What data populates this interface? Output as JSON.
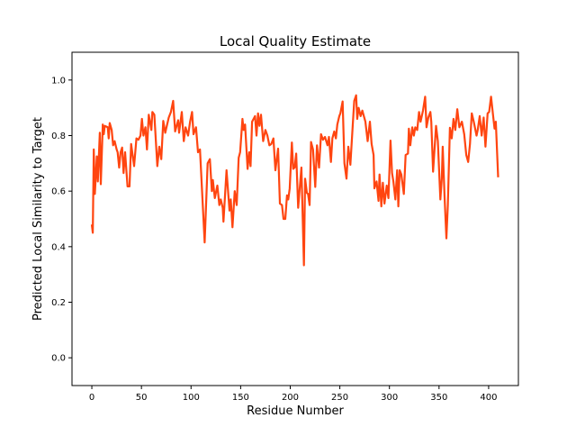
{
  "chart_data": {
    "type": "line",
    "title": "Local Quality Estimate",
    "xlabel": "Residue Number",
    "ylabel": "Predicted Local Similarity to Target",
    "xlim": [
      -20,
      430
    ],
    "ylim": [
      -0.1,
      1.1
    ],
    "xticks": [
      0,
      50,
      100,
      150,
      200,
      250,
      300,
      350,
      400
    ],
    "xtick_labels": [
      "0",
      "50",
      "100",
      "150",
      "200",
      "250",
      "300",
      "350",
      "400"
    ],
    "yticks": [
      0.0,
      0.2,
      0.4,
      0.6,
      0.8,
      1.0
    ],
    "ytick_labels": [
      "0.0",
      "0.2",
      "0.4",
      "0.6",
      "0.8",
      "1.0"
    ],
    "grid": false,
    "series": [
      {
        "name": "local quality",
        "color": "#ff4510",
        "points": [
          [
            0,
            0.48
          ],
          [
            1,
            0.45
          ],
          [
            2,
            0.75
          ],
          [
            3,
            0.59
          ],
          [
            5,
            0.725
          ],
          [
            6,
            0.635
          ],
          [
            8,
            0.81
          ],
          [
            9,
            0.625
          ],
          [
            11,
            0.84
          ],
          [
            12,
            0.805
          ],
          [
            13,
            0.835
          ],
          [
            16,
            0.83
          ],
          [
            17,
            0.79
          ],
          [
            18,
            0.845
          ],
          [
            20,
            0.82
          ],
          [
            21.5,
            0.765
          ],
          [
            23,
            0.78
          ],
          [
            25,
            0.75
          ],
          [
            26,
            0.74
          ],
          [
            27.5,
            0.685
          ],
          [
            29,
            0.74
          ],
          [
            30.5,
            0.757
          ],
          [
            32,
            0.665
          ],
          [
            33.5,
            0.74
          ],
          [
            36,
            0.617
          ],
          [
            38,
            0.617
          ],
          [
            39.6,
            0.77
          ],
          [
            42.6,
            0.69
          ],
          [
            45,
            0.79
          ],
          [
            47,
            0.785
          ],
          [
            49,
            0.8
          ],
          [
            50.5,
            0.86
          ],
          [
            52,
            0.8
          ],
          [
            54,
            0.83
          ],
          [
            55.6,
            0.75
          ],
          [
            57.4,
            0.875
          ],
          [
            60,
            0.82
          ],
          [
            61,
            0.885
          ],
          [
            63,
            0.875
          ],
          [
            66,
            0.69
          ],
          [
            68,
            0.76
          ],
          [
            70,
            0.715
          ],
          [
            72,
            0.853
          ],
          [
            74,
            0.81
          ],
          [
            77.5,
            0.865
          ],
          [
            79.7,
            0.885
          ],
          [
            82,
            0.925
          ],
          [
            84,
            0.815
          ],
          [
            87,
            0.855
          ],
          [
            88,
            0.81
          ],
          [
            90.7,
            0.885
          ],
          [
            92.7,
            0.78
          ],
          [
            94.5,
            0.83
          ],
          [
            97,
            0.8
          ],
          [
            99,
            0.85
          ],
          [
            101,
            0.885
          ],
          [
            102.5,
            0.805
          ],
          [
            105,
            0.83
          ],
          [
            107,
            0.74
          ],
          [
            109,
            0.75
          ],
          [
            113.7,
            0.415
          ],
          [
            116.7,
            0.7
          ],
          [
            119,
            0.715
          ],
          [
            121,
            0.6
          ],
          [
            122,
            0.64
          ],
          [
            124,
            0.575
          ],
          [
            126.5,
            0.62
          ],
          [
            128.5,
            0.55
          ],
          [
            130,
            0.57
          ],
          [
            132,
            0.54
          ],
          [
            132.7,
            0.49
          ],
          [
            135.8,
            0.675
          ],
          [
            138.8,
            0.53
          ],
          [
            140,
            0.57
          ],
          [
            141.8,
            0.47
          ],
          [
            144,
            0.6
          ],
          [
            146,
            0.55
          ],
          [
            148,
            0.72
          ],
          [
            149.5,
            0.74
          ],
          [
            151.8,
            0.86
          ],
          [
            153,
            0.82
          ],
          [
            154.5,
            0.84
          ],
          [
            157,
            0.68
          ],
          [
            158.6,
            0.74
          ],
          [
            160,
            0.69
          ],
          [
            161.5,
            0.85
          ],
          [
            164.5,
            0.87
          ],
          [
            166,
            0.8
          ],
          [
            167.5,
            0.88
          ],
          [
            169,
            0.835
          ],
          [
            170.5,
            0.875
          ],
          [
            172.7,
            0.78
          ],
          [
            175,
            0.82
          ],
          [
            177,
            0.8
          ],
          [
            179,
            0.765
          ],
          [
            181,
            0.77
          ],
          [
            183,
            0.79
          ],
          [
            185,
            0.675
          ],
          [
            187.8,
            0.753
          ],
          [
            189.6,
            0.555
          ],
          [
            191.7,
            0.55
          ],
          [
            193.2,
            0.5
          ],
          [
            195,
            0.5
          ],
          [
            196.7,
            0.585
          ],
          [
            198,
            0.57
          ],
          [
            199.5,
            0.61
          ],
          [
            201.6,
            0.775
          ],
          [
            203,
            0.68
          ],
          [
            204.5,
            0.685
          ],
          [
            206,
            0.735
          ],
          [
            208,
            0.54
          ],
          [
            211.3,
            0.685
          ],
          [
            213.8,
            0.333
          ],
          [
            215,
            0.645
          ],
          [
            216.8,
            0.593
          ],
          [
            218,
            0.59
          ],
          [
            219.5,
            0.55
          ],
          [
            221,
            0.777
          ],
          [
            223,
            0.75
          ],
          [
            225.2,
            0.615
          ],
          [
            227,
            0.765
          ],
          [
            229,
            0.685
          ],
          [
            231,
            0.805
          ],
          [
            233,
            0.785
          ],
          [
            235,
            0.795
          ],
          [
            237.6,
            0.765
          ],
          [
            239,
            0.795
          ],
          [
            241,
            0.705
          ],
          [
            242.5,
            0.79
          ],
          [
            244.4,
            0.815
          ],
          [
            246,
            0.79
          ],
          [
            247.5,
            0.84
          ],
          [
            249.5,
            0.87
          ],
          [
            250.5,
            0.88
          ],
          [
            252.8,
            0.923
          ],
          [
            254.6,
            0.7
          ],
          [
            256.7,
            0.645
          ],
          [
            258.5,
            0.76
          ],
          [
            260.6,
            0.695
          ],
          [
            263,
            0.835
          ],
          [
            264.5,
            0.925
          ],
          [
            266.4,
            0.945
          ],
          [
            267.5,
            0.86
          ],
          [
            269,
            0.9
          ],
          [
            271,
            0.87
          ],
          [
            272.7,
            0.89
          ],
          [
            275.8,
            0.85
          ],
          [
            278,
            0.78
          ],
          [
            280.3,
            0.85
          ],
          [
            282,
            0.77
          ],
          [
            284,
            0.73
          ],
          [
            284.8,
            0.61
          ],
          [
            287,
            0.635
          ],
          [
            289,
            0.565
          ],
          [
            290,
            0.66
          ],
          [
            291.8,
            0.545
          ],
          [
            293.4,
            0.63
          ],
          [
            295,
            0.555
          ],
          [
            297.3,
            0.62
          ],
          [
            299,
            0.575
          ],
          [
            301.1,
            0.782
          ],
          [
            302.6,
            0.665
          ],
          [
            304,
            0.635
          ],
          [
            306,
            0.57
          ],
          [
            307.8,
            0.675
          ],
          [
            309,
            0.545
          ],
          [
            310.3,
            0.675
          ],
          [
            312,
            0.66
          ],
          [
            314.5,
            0.59
          ],
          [
            316.3,
            0.73
          ],
          [
            318.7,
            0.735
          ],
          [
            319.6,
            0.825
          ],
          [
            321,
            0.765
          ],
          [
            323,
            0.83
          ],
          [
            324.6,
            0.8
          ],
          [
            326,
            0.83
          ],
          [
            328,
            0.82
          ],
          [
            329.8,
            0.885
          ],
          [
            331.4,
            0.85
          ],
          [
            333.8,
            0.89
          ],
          [
            336,
            0.94
          ],
          [
            337.4,
            0.83
          ],
          [
            339.2,
            0.865
          ],
          [
            341.3,
            0.885
          ],
          [
            342.2,
            0.85
          ],
          [
            344,
            0.67
          ],
          [
            347,
            0.835
          ],
          [
            348.8,
            0.78
          ],
          [
            351.3,
            0.57
          ],
          [
            352.8,
            0.645
          ],
          [
            353.7,
            0.76
          ],
          [
            355.5,
            0.585
          ],
          [
            357.4,
            0.43
          ],
          [
            358.9,
            0.55
          ],
          [
            361,
            0.828
          ],
          [
            362.8,
            0.79
          ],
          [
            364.6,
            0.86
          ],
          [
            366.4,
            0.82
          ],
          [
            368.4,
            0.895
          ],
          [
            370.5,
            0.83
          ],
          [
            373,
            0.85
          ],
          [
            375.4,
            0.805
          ],
          [
            377.5,
            0.73
          ],
          [
            379.4,
            0.705
          ],
          [
            381.2,
            0.77
          ],
          [
            383,
            0.88
          ],
          [
            385,
            0.85
          ],
          [
            387.8,
            0.8
          ],
          [
            389,
            0.82
          ],
          [
            391,
            0.87
          ],
          [
            393,
            0.8
          ],
          [
            395,
            0.865
          ],
          [
            396.8,
            0.76
          ],
          [
            399,
            0.88
          ],
          [
            400.5,
            0.885
          ],
          [
            402.4,
            0.94
          ],
          [
            404.2,
            0.88
          ],
          [
            406,
            0.825
          ],
          [
            407.2,
            0.85
          ],
          [
            409.6,
            0.65
          ]
        ]
      }
    ]
  }
}
